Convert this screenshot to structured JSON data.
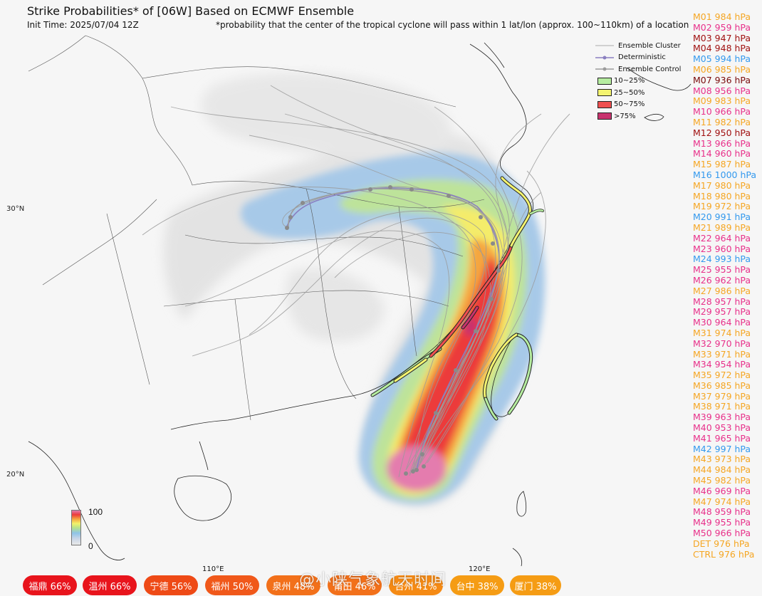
{
  "title": "Strike Probabilities* of [06W] Based on ECMWF Ensemble",
  "init_time": "Init Time: 2025/07/04 12Z",
  "footnote": "*probability that the center of the tropical cyclone will pass within 1 lat/lon (approx. 100~110km) of a location",
  "axes": {
    "lat_labels": [
      "30°N",
      "20°N"
    ],
    "lon_labels": [
      "110°E",
      "120°E"
    ]
  },
  "legend": {
    "ensemble_cluster": "Ensemble Cluster",
    "deterministic": "Deterministic",
    "ensemble_control": "Ensemble Control",
    "bins": [
      {
        "label": "10~25%",
        "color": "#b6eda0"
      },
      {
        "label": "25~50%",
        "color": "#f4f470"
      },
      {
        "label": "50~75%",
        "color": "#f05050"
      },
      {
        "label": ">75%",
        "color": "#c8336e"
      }
    ]
  },
  "colorbar": {
    "max": "100",
    "min": "0"
  },
  "members": [
    {
      "text": "M01 984 hPa",
      "color": "#f5a623"
    },
    {
      "text": "M02 959 hPa",
      "color": "#e8308a"
    },
    {
      "text": "M03 947 hPa",
      "color": "#a01010"
    },
    {
      "text": "M04 948 hPa",
      "color": "#a01010"
    },
    {
      "text": "M05 994 hPa",
      "color": "#3399ee"
    },
    {
      "text": "M06 985 hPa",
      "color": "#f5a623"
    },
    {
      "text": "M07 936 hPa",
      "color": "#7a0a0a"
    },
    {
      "text": "M08 956 hPa",
      "color": "#e8308a"
    },
    {
      "text": "M09 983 hPa",
      "color": "#f5a623"
    },
    {
      "text": "M10 966 hPa",
      "color": "#e8308a"
    },
    {
      "text": "M11 982 hPa",
      "color": "#f5a623"
    },
    {
      "text": "M12 950 hPa",
      "color": "#a01010"
    },
    {
      "text": "M13 966 hPa",
      "color": "#e8308a"
    },
    {
      "text": "M14 960 hPa",
      "color": "#e8308a"
    },
    {
      "text": "M15 987 hPa",
      "color": "#f5a623"
    },
    {
      "text": "M16 1000 hPa",
      "color": "#3399ee"
    },
    {
      "text": "M17 980 hPa",
      "color": "#f5a623"
    },
    {
      "text": "M18 980 hPa",
      "color": "#f5a623"
    },
    {
      "text": "M19 972 hPa",
      "color": "#f5a623"
    },
    {
      "text": "M20 991 hPa",
      "color": "#3399ee"
    },
    {
      "text": "M21 989 hPa",
      "color": "#f5a623"
    },
    {
      "text": "M22 964 hPa",
      "color": "#e8308a"
    },
    {
      "text": "M23 960 hPa",
      "color": "#e8308a"
    },
    {
      "text": "M24 993 hPa",
      "color": "#3399ee"
    },
    {
      "text": "M25 955 hPa",
      "color": "#e8308a"
    },
    {
      "text": "M26 962 hPa",
      "color": "#e8308a"
    },
    {
      "text": "M27 986 hPa",
      "color": "#f5a623"
    },
    {
      "text": "M28 957 hPa",
      "color": "#e8308a"
    },
    {
      "text": "M29 957 hPa",
      "color": "#e8308a"
    },
    {
      "text": "M30 964 hPa",
      "color": "#e8308a"
    },
    {
      "text": "M31 974 hPa",
      "color": "#f5a623"
    },
    {
      "text": "M32 970 hPa",
      "color": "#e8308a"
    },
    {
      "text": "M33 971 hPa",
      "color": "#f5a623"
    },
    {
      "text": "M34 954 hPa",
      "color": "#e8308a"
    },
    {
      "text": "M35 972 hPa",
      "color": "#f5a623"
    },
    {
      "text": "M36 985 hPa",
      "color": "#f5a623"
    },
    {
      "text": "M37 979 hPa",
      "color": "#f5a623"
    },
    {
      "text": "M38 971 hPa",
      "color": "#f5a623"
    },
    {
      "text": "M39 963 hPa",
      "color": "#e8308a"
    },
    {
      "text": "M40 953 hPa",
      "color": "#e8308a"
    },
    {
      "text": "M41 965 hPa",
      "color": "#e8308a"
    },
    {
      "text": "M42 997 hPa",
      "color": "#3399ee"
    },
    {
      "text": "M43 973 hPa",
      "color": "#f5a623"
    },
    {
      "text": "M44 984 hPa",
      "color": "#f5a623"
    },
    {
      "text": "M45 982 hPa",
      "color": "#f5a623"
    },
    {
      "text": "M46 969 hPa",
      "color": "#e8308a"
    },
    {
      "text": "M47 974 hPa",
      "color": "#f5a623"
    },
    {
      "text": "M48 959 hPa",
      "color": "#e8308a"
    },
    {
      "text": "M49 955 hPa",
      "color": "#e8308a"
    },
    {
      "text": "M50 966 hPa",
      "color": "#e8308a"
    },
    {
      "text": "DET 976 hPa",
      "color": "#f5a623"
    },
    {
      "text": "CTRL 976 hPa",
      "color": "#f5a623"
    }
  ],
  "cities": [
    {
      "label": "福鼎 66%",
      "color": "#e8141c"
    },
    {
      "label": "温州 66%",
      "color": "#e8141c"
    },
    {
      "label": "宁德 56%",
      "color": "#ee4a16"
    },
    {
      "label": "福州 50%",
      "color": "#f0581a"
    },
    {
      "label": "泉州 48%",
      "color": "#f2701a"
    },
    {
      "label": "莆田 46%",
      "color": "#f2701a"
    },
    {
      "label": "台州 41%",
      "color": "#f58a14"
    },
    {
      "label": "台中 38%",
      "color": "#f59c14"
    },
    {
      "label": "厦门 38%",
      "color": "#f59c14"
    }
  ],
  "watermark": "@小陕气象航天时间"
}
